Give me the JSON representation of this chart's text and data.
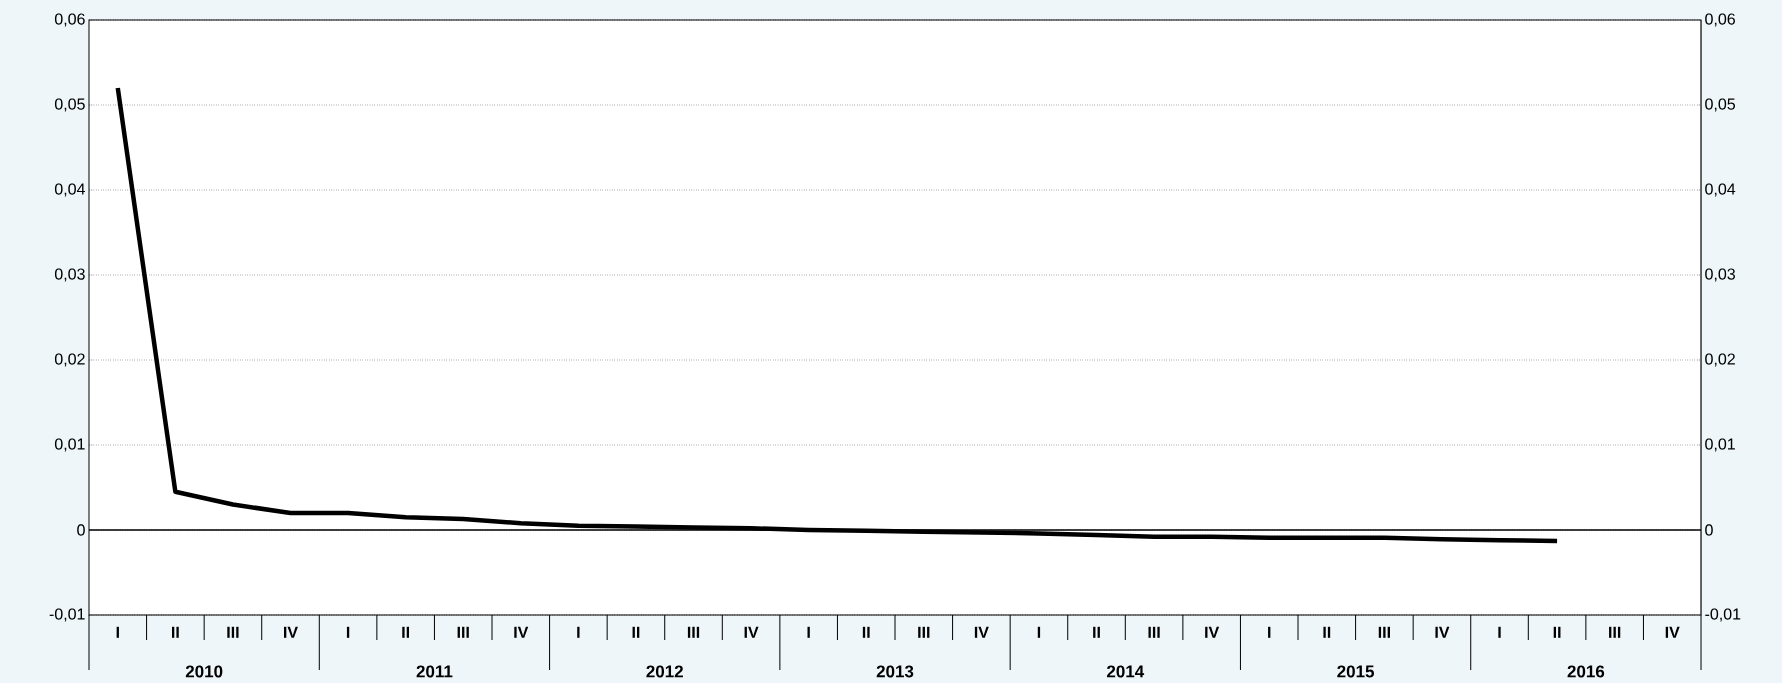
{
  "chart_data": {
    "type": "line",
    "categories": [
      "I",
      "II",
      "III",
      "IV",
      "I",
      "II",
      "III",
      "IV",
      "I",
      "II",
      "III",
      "IV",
      "I",
      "II",
      "III",
      "IV",
      "I",
      "II",
      "III",
      "IV",
      "I",
      "II",
      "III",
      "IV",
      "I",
      "II",
      "III",
      "IV"
    ],
    "annotations": [
      "2010",
      "2011",
      "2012",
      "2013",
      "2014",
      "2015",
      "2016"
    ],
    "series": [
      {
        "color": "#000000",
        "values": [
          0.052,
          0.0045,
          0.003,
          0.002,
          0.002,
          0.0015,
          0.0013,
          0.0008,
          0.0005,
          0.0004,
          0.0003,
          0.0002,
          0.0,
          -0.0001,
          -0.0002,
          -0.0003,
          -0.0004,
          -0.0006,
          -0.0008,
          -0.0008,
          -0.0009,
          -0.0009,
          -0.0009,
          -0.0011,
          -0.0012,
          -0.0013,
          null,
          null
        ]
      }
    ],
    "ylim": [
      -0.01,
      0.06
    ],
    "yticks": [
      {
        "value": -0.01,
        "label": "-0,01"
      },
      {
        "value": 0,
        "label": "0"
      },
      {
        "value": 0.01,
        "label": "0,01"
      },
      {
        "value": 0.02,
        "label": "0,02"
      },
      {
        "value": 0.03,
        "label": "0,03"
      },
      {
        "value": 0.04,
        "label": "0,04"
      },
      {
        "value": 0.05,
        "label": "0,05"
      },
      {
        "value": 0.06,
        "label": "0,06"
      }
    ],
    "y2lim": [
      -0.01,
      0.06
    ],
    "y2ticks": [
      {
        "value": -0.01,
        "label": "-0,01"
      },
      {
        "value": 0,
        "label": "0"
      },
      {
        "value": 0.01,
        "label": "0,01"
      },
      {
        "value": 0.02,
        "label": "0,02"
      },
      {
        "value": 0.03,
        "label": "0,03"
      },
      {
        "value": 0.04,
        "label": "0,04"
      },
      {
        "value": 0.05,
        "label": "0,05"
      },
      {
        "value": 0.06,
        "label": "0,06"
      }
    ],
    "ref_lines": [
      {
        "axis": "y",
        "value": 0,
        "color": "#000000"
      }
    ],
    "grid": "y",
    "marker": "none",
    "line_style": "solid"
  }
}
